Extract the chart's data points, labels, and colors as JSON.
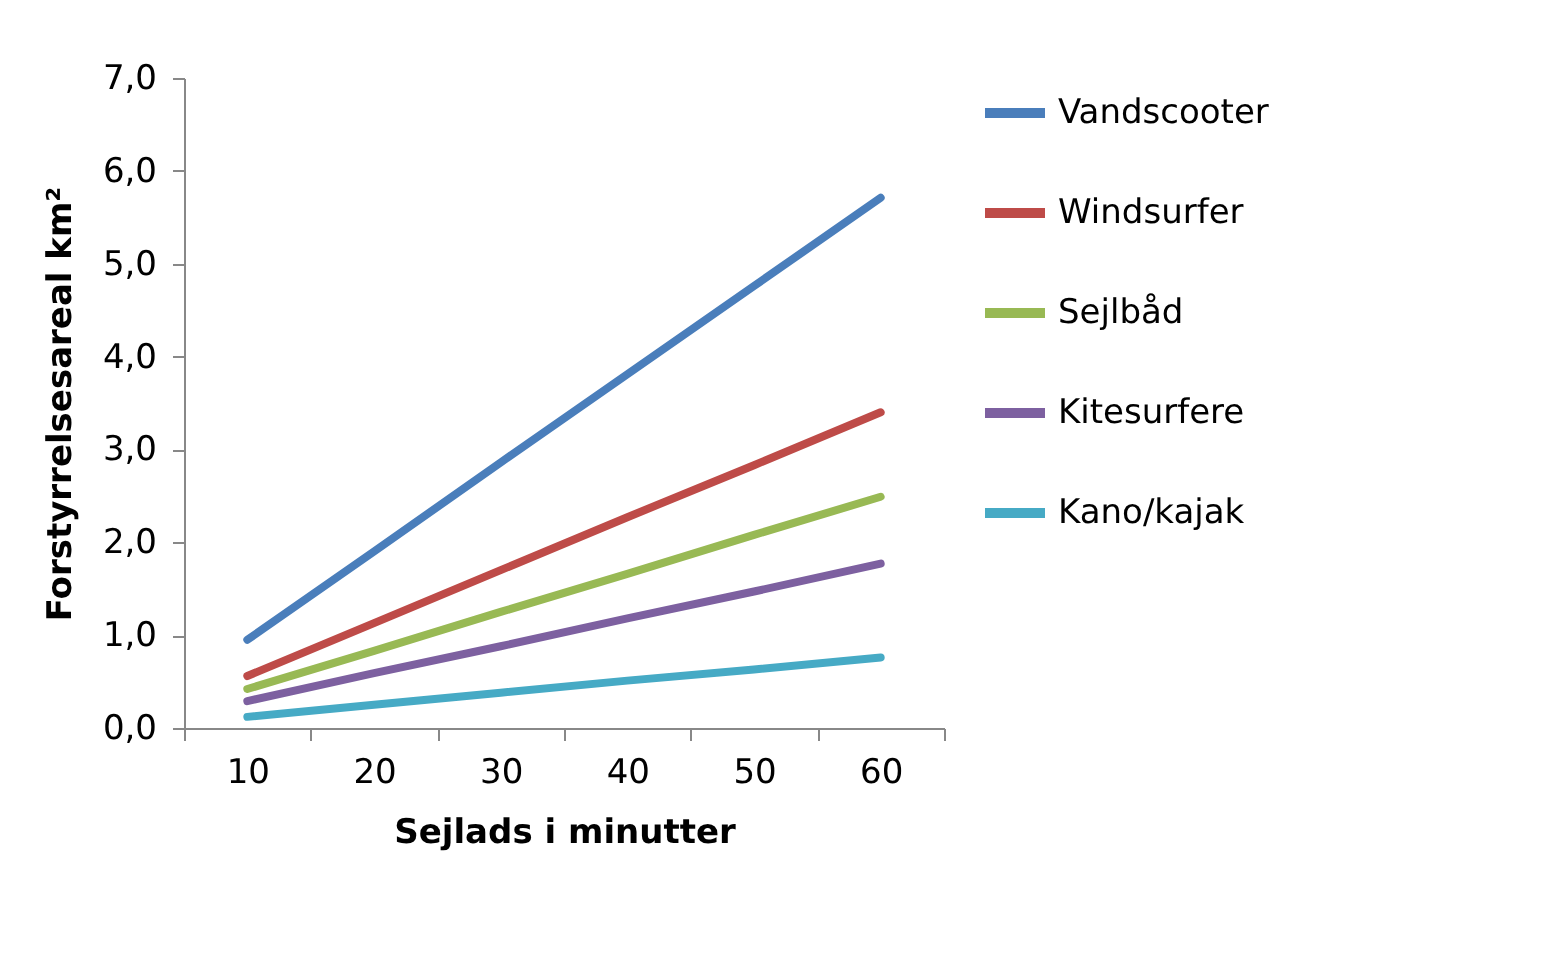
{
  "chart_data": {
    "type": "line",
    "xlabel": "Sejlads i minutter",
    "ylabel": "Forstyrrelsesareal km²",
    "categories": [
      "10",
      "20",
      "30",
      "40",
      "50",
      "60"
    ],
    "series": [
      {
        "name": "Vandscooter",
        "color": "#4a7ebb",
        "values": [
          0.95,
          1.9,
          2.86,
          3.81,
          4.76,
          5.71
        ]
      },
      {
        "name": "Windsurfer",
        "color": "#be4b48",
        "values": [
          0.56,
          1.13,
          1.7,
          2.27,
          2.83,
          3.4
        ]
      },
      {
        "name": "Sejlbåd",
        "color": "#98b954",
        "values": [
          0.42,
          0.83,
          1.25,
          1.66,
          2.08,
          2.49
        ]
      },
      {
        "name": "Kitesurfere",
        "color": "#7d60a0",
        "values": [
          0.29,
          0.59,
          0.88,
          1.18,
          1.47,
          1.77
        ]
      },
      {
        "name": "Kano/kajak",
        "color": "#46aac5",
        "values": [
          0.12,
          0.25,
          0.38,
          0.51,
          0.63,
          0.76
        ]
      }
    ],
    "ylim": [
      0,
      7
    ],
    "yticks": [
      {
        "value": 0,
        "label": "0,0"
      },
      {
        "value": 1,
        "label": "1,0"
      },
      {
        "value": 2,
        "label": "2,0"
      },
      {
        "value": 3,
        "label": "3,0"
      },
      {
        "value": 4,
        "label": "4,0"
      },
      {
        "value": 5,
        "label": "5,0"
      },
      {
        "value": 6,
        "label": "6,0"
      },
      {
        "value": 7,
        "label": "7,0"
      }
    ],
    "grid": false,
    "legend": "right",
    "marker": "none",
    "line_style": "solid"
  }
}
